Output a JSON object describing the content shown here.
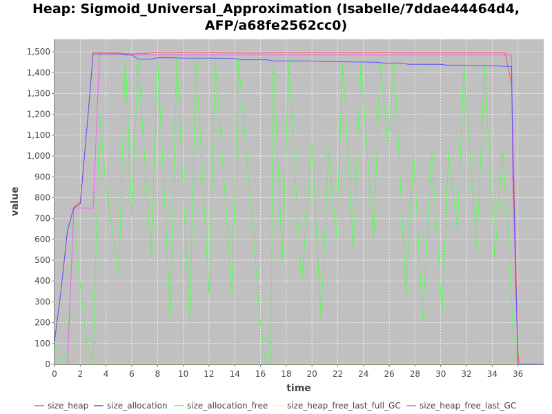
{
  "title_line1": "Heap: Sigmoid_Universal_Approximation (Isabelle/7ddae44464d4,",
  "title_line2": "AFP/a68fe2562cc0)",
  "chart_data": {
    "type": "line",
    "xlabel": "time",
    "ylabel": "value",
    "xlim": [
      0,
      38
    ],
    "ylim": [
      0,
      1560
    ],
    "x_ticks": [
      0,
      2,
      4,
      6,
      8,
      10,
      12,
      14,
      16,
      18,
      20,
      22,
      24,
      26,
      28,
      30,
      32,
      34,
      36
    ],
    "y_ticks": [
      0,
      100,
      200,
      300,
      400,
      500,
      600,
      700,
      800,
      900,
      1000,
      1100,
      1200,
      1300,
      1400,
      1500
    ],
    "y_tick_labels": [
      "0",
      "100",
      "200",
      "300",
      "400",
      "500",
      "600",
      "700",
      "800",
      "900",
      "1,000",
      "1,100",
      "1,200",
      "1,300",
      "1,400",
      "1,500"
    ],
    "grid": true,
    "legend_position": "bottom",
    "background": "#c0c0c0",
    "series": [
      {
        "name": "size_heap",
        "color": "#ff5555",
        "points": [
          [
            0,
            110
          ],
          [
            0.5,
            350
          ],
          [
            1,
            640
          ],
          [
            1.5,
            755
          ],
          [
            2,
            780
          ],
          [
            2.6,
            1190
          ],
          [
            3,
            1498
          ],
          [
            4,
            1495
          ],
          [
            5,
            1495
          ],
          [
            5.5,
            1490
          ],
          [
            6,
            1490
          ],
          [
            7,
            1492
          ],
          [
            8,
            1497
          ],
          [
            10,
            1498
          ],
          [
            12,
            1497
          ],
          [
            13,
            1495
          ],
          [
            16,
            1494
          ],
          [
            17,
            1496
          ],
          [
            20,
            1496
          ],
          [
            22,
            1496
          ],
          [
            24,
            1495
          ],
          [
            25,
            1496
          ],
          [
            27,
            1495
          ],
          [
            30,
            1495
          ],
          [
            32,
            1495
          ],
          [
            35,
            1495
          ],
          [
            35.5,
            1350
          ],
          [
            36,
            50
          ],
          [
            36.1,
            0
          ],
          [
            38,
            0
          ]
        ]
      },
      {
        "name": "size_allocation",
        "color": "#5555ff",
        "points": [
          [
            0,
            110
          ],
          [
            0.5,
            350
          ],
          [
            1,
            640
          ],
          [
            1.5,
            750
          ],
          [
            2,
            770
          ],
          [
            2.6,
            1190
          ],
          [
            3,
            1490
          ],
          [
            4,
            1490
          ],
          [
            5,
            1490
          ],
          [
            5.5,
            1485
          ],
          [
            6,
            1485
          ],
          [
            6.5,
            1465
          ],
          [
            7.5,
            1465
          ],
          [
            8,
            1472
          ],
          [
            9,
            1472
          ],
          [
            10,
            1470
          ],
          [
            12,
            1470
          ],
          [
            14,
            1468
          ],
          [
            14.5,
            1462
          ],
          [
            16.5,
            1462
          ],
          [
            17,
            1456
          ],
          [
            20,
            1456
          ],
          [
            21,
            1453
          ],
          [
            25,
            1450
          ],
          [
            25.5,
            1446
          ],
          [
            27,
            1446
          ],
          [
            27.5,
            1440
          ],
          [
            30,
            1440
          ],
          [
            30.5,
            1436
          ],
          [
            32,
            1436
          ],
          [
            33,
            1433
          ],
          [
            34,
            1433
          ],
          [
            35,
            1430
          ],
          [
            35.5,
            1430
          ],
          [
            35.6,
            1000
          ],
          [
            36,
            0
          ],
          [
            38,
            0
          ]
        ]
      },
      {
        "name": "size_allocation_free",
        "color": "#55ff55",
        "points": [
          [
            0,
            110
          ],
          [
            0.5,
            0
          ],
          [
            1,
            70
          ],
          [
            1.5,
            700
          ],
          [
            2,
            380
          ],
          [
            2.5,
            110
          ],
          [
            3,
            0
          ],
          [
            3.5,
            1210
          ],
          [
            4,
            850
          ],
          [
            5,
            430
          ],
          [
            5.5,
            1480
          ],
          [
            6,
            720
          ],
          [
            6.5,
            1465
          ],
          [
            7.5,
            510
          ],
          [
            8,
            1470
          ],
          [
            9,
            230
          ],
          [
            9.5,
            1470
          ],
          [
            10.5,
            200
          ],
          [
            11,
            1465
          ],
          [
            12,
            340
          ],
          [
            12.5,
            1460
          ],
          [
            13.8,
            330
          ],
          [
            14.3,
            1460
          ],
          [
            16,
            200
          ],
          [
            16.4,
            0
          ],
          [
            16.8,
            0
          ],
          [
            17,
            1460
          ],
          [
            17.7,
            500
          ],
          [
            18.2,
            1460
          ],
          [
            19.2,
            390
          ],
          [
            20,
            1060
          ],
          [
            20.7,
            220
          ],
          [
            21.3,
            1040
          ],
          [
            21.9,
            610
          ],
          [
            22.4,
            1445
          ],
          [
            23.2,
            550
          ],
          [
            23.8,
            1440
          ],
          [
            24.8,
            600
          ],
          [
            25.3,
            1440
          ],
          [
            25.9,
            1060
          ],
          [
            26.4,
            1445
          ],
          [
            27.3,
            330
          ],
          [
            27.9,
            1010
          ],
          [
            28.6,
            210
          ],
          [
            29.3,
            1030
          ],
          [
            30.1,
            240
          ],
          [
            30.6,
            1010
          ],
          [
            31.3,
            640
          ],
          [
            31.8,
            1435
          ],
          [
            32.8,
            550
          ],
          [
            33.4,
            1430
          ],
          [
            34.2,
            510
          ],
          [
            34.8,
            1020
          ],
          [
            35.3,
            580
          ],
          [
            35.6,
            180
          ],
          [
            36,
            0
          ],
          [
            38,
            0
          ]
        ]
      },
      {
        "name": "size_heap_free_last_full_GC",
        "color": "#ffff55",
        "points": [
          [
            0,
            0
          ],
          [
            38,
            0
          ]
        ]
      },
      {
        "name": "size_heap_free_last_GC",
        "color": "#ff55ff",
        "points": [
          [
            1,
            0
          ],
          [
            1.5,
            750
          ],
          [
            3,
            750
          ],
          [
            3.5,
            1490
          ],
          [
            5,
            1490
          ],
          [
            6,
            1485
          ],
          [
            7.5,
            1485
          ],
          [
            35.5,
            1485
          ],
          [
            35.6,
            900
          ],
          [
            36,
            0
          ]
        ]
      }
    ]
  }
}
